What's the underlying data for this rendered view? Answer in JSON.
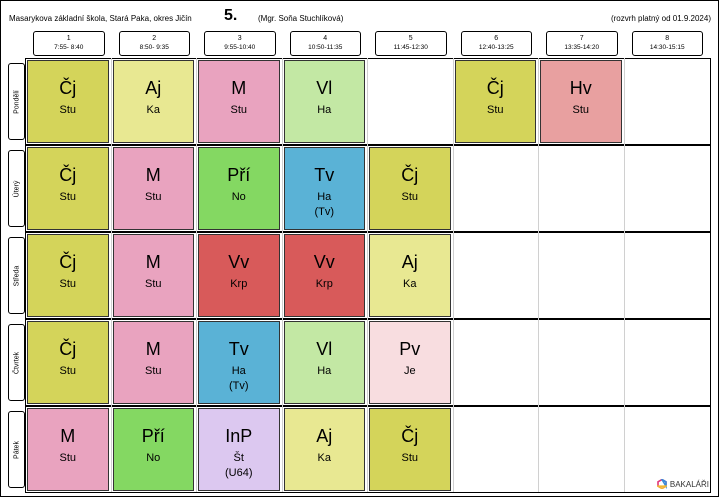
{
  "header": {
    "school": "Masarykova základní škola, Stará Paka, okres Jičín",
    "class_name": "5.",
    "teacher": "(Mgr. Soňa Stuchlíková)",
    "valid_from": "(rozvrh platný od 01.9.2024)"
  },
  "periods": [
    {
      "num": "1",
      "time": "7:55- 8:40"
    },
    {
      "num": "2",
      "time": "8:50- 9:35"
    },
    {
      "num": "3",
      "time": "9:55-10:40"
    },
    {
      "num": "4",
      "time": "10:50-11:35"
    },
    {
      "num": "5",
      "time": "11:45-12:30"
    },
    {
      "num": "6",
      "time": "12:40-13:25"
    },
    {
      "num": "7",
      "time": "13:35-14:20"
    },
    {
      "num": "8",
      "time": "14:30-15:15"
    }
  ],
  "days": [
    "Pondělí",
    "Úterý",
    "Středa",
    "Čtvrtek",
    "Pátek"
  ],
  "colors": {
    "cj": "#d4d45a",
    "aj": "#e8e892",
    "m": "#e9a3bf",
    "vl": "#c3e8a4",
    "pri": "#84d862",
    "tv": "#5ab2d6",
    "vv": "#d85a5a",
    "hv": "#e8a0a0",
    "pv": "#f8dde0",
    "inp": "#dcc8f0"
  },
  "lessons": [
    {
      "day": 0,
      "period": 0,
      "subject": "Čj",
      "teacher": "Stu",
      "room": "",
      "color": "#d4d45a"
    },
    {
      "day": 0,
      "period": 1,
      "subject": "Aj",
      "teacher": "Ka",
      "room": "",
      "color": "#e8e892"
    },
    {
      "day": 0,
      "period": 2,
      "subject": "M",
      "teacher": "Stu",
      "room": "",
      "color": "#e9a3bf"
    },
    {
      "day": 0,
      "period": 3,
      "subject": "Vl",
      "teacher": "Ha",
      "room": "",
      "color": "#c3e8a4"
    },
    {
      "day": 0,
      "period": 5,
      "subject": "Čj",
      "teacher": "Stu",
      "room": "",
      "color": "#d4d45a"
    },
    {
      "day": 0,
      "period": 6,
      "subject": "Hv",
      "teacher": "Stu",
      "room": "",
      "color": "#e8a0a0"
    },
    {
      "day": 1,
      "period": 0,
      "subject": "Čj",
      "teacher": "Stu",
      "room": "",
      "color": "#d4d45a"
    },
    {
      "day": 1,
      "period": 1,
      "subject": "M",
      "teacher": "Stu",
      "room": "",
      "color": "#e9a3bf"
    },
    {
      "day": 1,
      "period": 2,
      "subject": "Pří",
      "teacher": "No",
      "room": "",
      "color": "#84d862"
    },
    {
      "day": 1,
      "period": 3,
      "subject": "Tv",
      "teacher": "Ha",
      "room": "(Tv)",
      "color": "#5ab2d6"
    },
    {
      "day": 1,
      "period": 4,
      "subject": "Čj",
      "teacher": "Stu",
      "room": "",
      "color": "#d4d45a"
    },
    {
      "day": 2,
      "period": 0,
      "subject": "Čj",
      "teacher": "Stu",
      "room": "",
      "color": "#d4d45a"
    },
    {
      "day": 2,
      "period": 1,
      "subject": "M",
      "teacher": "Stu",
      "room": "",
      "color": "#e9a3bf"
    },
    {
      "day": 2,
      "period": 2,
      "subject": "Vv",
      "teacher": "Krp",
      "room": "",
      "color": "#d85a5a"
    },
    {
      "day": 2,
      "period": 3,
      "subject": "Vv",
      "teacher": "Krp",
      "room": "",
      "color": "#d85a5a"
    },
    {
      "day": 2,
      "period": 4,
      "subject": "Aj",
      "teacher": "Ka",
      "room": "",
      "color": "#e8e892"
    },
    {
      "day": 3,
      "period": 0,
      "subject": "Čj",
      "teacher": "Stu",
      "room": "",
      "color": "#d4d45a"
    },
    {
      "day": 3,
      "period": 1,
      "subject": "M",
      "teacher": "Stu",
      "room": "",
      "color": "#e9a3bf"
    },
    {
      "day": 3,
      "period": 2,
      "subject": "Tv",
      "teacher": "Ha",
      "room": "(Tv)",
      "color": "#5ab2d6"
    },
    {
      "day": 3,
      "period": 3,
      "subject": "Vl",
      "teacher": "Ha",
      "room": "",
      "color": "#c3e8a4"
    },
    {
      "day": 3,
      "period": 4,
      "subject": "Pv",
      "teacher": "Je",
      "room": "",
      "color": "#f8dde0"
    },
    {
      "day": 4,
      "period": 0,
      "subject": "M",
      "teacher": "Stu",
      "room": "",
      "color": "#e9a3bf"
    },
    {
      "day": 4,
      "period": 1,
      "subject": "Pří",
      "teacher": "No",
      "room": "",
      "color": "#84d862"
    },
    {
      "day": 4,
      "period": 2,
      "subject": "InP",
      "teacher": "Št",
      "room": "(U64)",
      "color": "#dcc8f0"
    },
    {
      "day": 4,
      "period": 3,
      "subject": "Aj",
      "teacher": "Ka",
      "room": "",
      "color": "#e8e892"
    },
    {
      "day": 4,
      "period": 4,
      "subject": "Čj",
      "teacher": "Stu",
      "room": "",
      "color": "#d4d45a"
    }
  ],
  "logo": {
    "text": "BAKALÁŘI",
    "icon": "bakalari-logo-icon"
  }
}
